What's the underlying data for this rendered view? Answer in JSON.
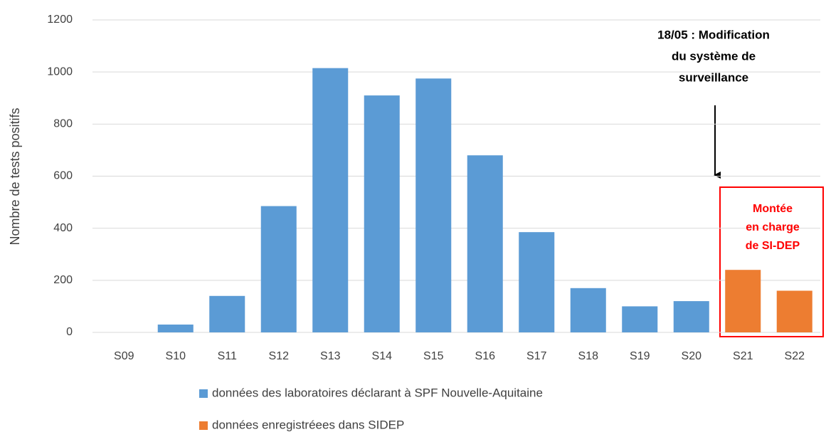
{
  "chart_data": {
    "type": "bar",
    "y_label": "Nombre de tests positifs",
    "categories": [
      "S09",
      "S10",
      "S11",
      "S12",
      "S13",
      "S14",
      "S15",
      "S16",
      "S17",
      "S18",
      "S19",
      "S20",
      "S21",
      "S22"
    ],
    "series": [
      {
        "name": "données des laboratoires déclarant à SPF Nouvelle-Aquitaine",
        "color": "#5b9bd5",
        "values": [
          0,
          30,
          140,
          485,
          1015,
          910,
          975,
          680,
          385,
          170,
          100,
          120,
          null,
          null
        ]
      },
      {
        "name": "données enregistréees dans SIDEP",
        "color": "#ed7d31",
        "values": [
          null,
          null,
          null,
          null,
          null,
          null,
          null,
          null,
          null,
          null,
          null,
          null,
          240,
          160
        ]
      }
    ],
    "ylim": [
      0,
      1200
    ],
    "yticks": [
      0,
      200,
      400,
      600,
      800,
      1000,
      1200
    ],
    "grid": true,
    "annotation": [
      "18/05 : Modification",
      "du système de",
      "surveillance"
    ],
    "highlight": [
      "Montée",
      "en charge",
      "de SI-DEP"
    ]
  }
}
